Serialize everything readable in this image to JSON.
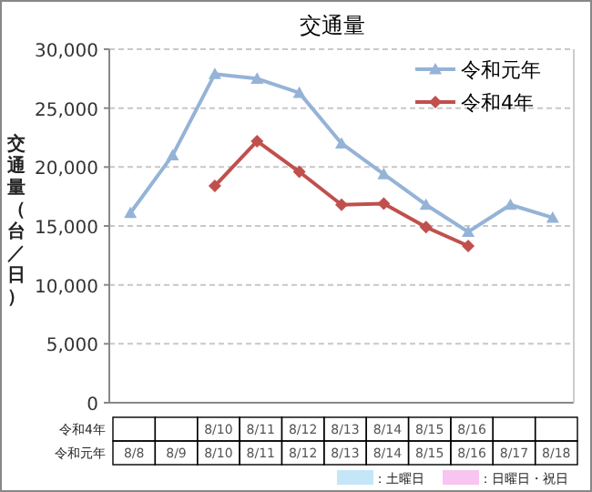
{
  "chart_data": {
    "type": "line",
    "title": "交通量",
    "ylabel": "交通量（台／日）",
    "categories": [
      "8/8",
      "8/9",
      "8/10",
      "8/11",
      "8/12",
      "8/13",
      "8/14",
      "8/15",
      "8/16",
      "8/17",
      "8/18"
    ],
    "series": [
      {
        "name": "令和元年",
        "color": "#95b3d7",
        "marker": "triangle",
        "values": [
          16100,
          21000,
          27900,
          27500,
          26300,
          22000,
          19400,
          16800,
          14500,
          16800,
          15700
        ]
      },
      {
        "name": "令和4年",
        "color": "#c0504d",
        "marker": "diamond",
        "values": [
          null,
          null,
          18400,
          22200,
          19600,
          16800,
          16900,
          14900,
          13300,
          null,
          null
        ]
      }
    ],
    "ylim": [
      0,
      30000
    ],
    "yticks": [
      {
        "value": 0,
        "label": "0"
      },
      {
        "value": 5000,
        "label": "5,000"
      },
      {
        "value": 10000,
        "label": "10,000"
      },
      {
        "value": 15000,
        "label": "15,000"
      },
      {
        "value": 20000,
        "label": "20,000"
      },
      {
        "value": 25000,
        "label": "25,000"
      },
      {
        "value": 30000,
        "label": "30,000"
      }
    ],
    "grid": "y",
    "legend": "top right",
    "annotations": [
      "8/10",
      "8/11",
      "8/12",
      "8/13",
      "8/14",
      "8/15",
      "8/16",
      "：土曜日",
      "：日曜日・祝日"
    ]
  }
}
